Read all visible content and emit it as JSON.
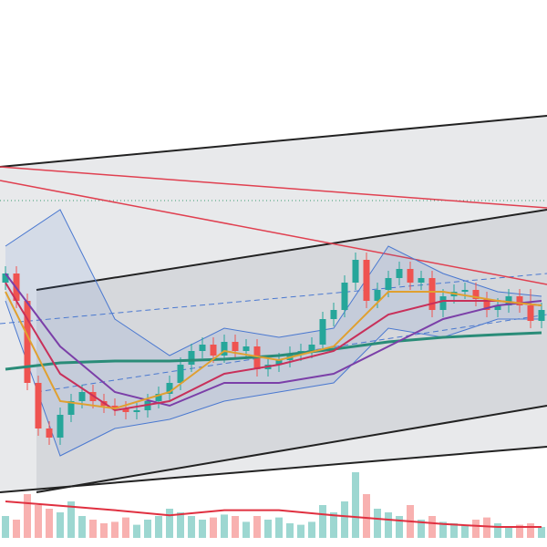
{
  "chart_data": {
    "type": "candlestick",
    "open": [
      29,
      30,
      27,
      18,
      13,
      12,
      14.5,
      16,
      17,
      16,
      15.5,
      15.2,
      14.8,
      15,
      16,
      16.8,
      18,
      20,
      21.5,
      22.2,
      21,
      22.5,
      21.5,
      22,
      19.5,
      20,
      20.5,
      21.2,
      21.5,
      22.2,
      25,
      26,
      29,
      31.5,
      27,
      28.2,
      29.5,
      30.5,
      29,
      29.5,
      26,
      27.5,
      28,
      28.2,
      27.2,
      26,
      26.5,
      27.5,
      26.5,
      24.8
    ],
    "high": [
      30.8,
      30.8,
      27.8,
      18.8,
      13.8,
      15.3,
      16.8,
      17.8,
      17.8,
      16.8,
      16.3,
      16,
      15.8,
      16.8,
      17.6,
      18.8,
      20.8,
      22.3,
      23,
      23,
      23.3,
      23.3,
      22.8,
      22.8,
      20.8,
      21.3,
      22,
      22.3,
      23,
      25.8,
      26.8,
      29.8,
      32.3,
      32.3,
      29,
      30.3,
      31.3,
      31.3,
      30.3,
      30.3,
      28.3,
      28.8,
      29,
      29,
      28,
      27.3,
      28.3,
      28.3,
      28.3,
      26.8
    ],
    "low": [
      28.2,
      26.2,
      17.2,
      12.2,
      11.2,
      11.2,
      13.7,
      15.2,
      15.2,
      14.7,
      14.4,
      14,
      14,
      14.2,
      15.2,
      16,
      17.2,
      19.2,
      20.7,
      20.2,
      20.2,
      20.7,
      20.7,
      18.7,
      18.7,
      19.2,
      19.7,
      20.4,
      20.7,
      21.4,
      24.2,
      25.2,
      28.2,
      26.2,
      26.2,
      27.4,
      28.7,
      28.2,
      28.2,
      25.2,
      25.2,
      26.7,
      27.2,
      26.4,
      25.2,
      25.2,
      25.7,
      25.7,
      24,
      24
    ],
    "close": [
      30,
      27,
      18,
      13,
      12,
      14.5,
      16,
      17,
      16,
      15.5,
      15.2,
      14.8,
      15,
      16,
      16.8,
      18,
      20,
      21.5,
      22.2,
      21,
      22.5,
      21.5,
      22,
      19.5,
      20,
      20.5,
      21.2,
      21.5,
      22.2,
      25,
      26,
      29,
      31.5,
      27,
      28.2,
      29.5,
      30.5,
      29,
      29.5,
      26,
      27.5,
      28,
      28.2,
      27.2,
      26,
      26.5,
      27.5,
      26.5,
      24.8,
      26
    ],
    "volume": [
      30,
      25,
      60,
      45,
      40,
      35,
      50,
      30,
      25,
      20,
      22,
      28,
      18,
      25,
      30,
      40,
      35,
      30,
      25,
      28,
      32,
      30,
      22,
      30,
      25,
      28,
      20,
      18,
      22,
      45,
      35,
      50,
      90,
      60,
      40,
      35,
      30,
      45,
      25,
      30,
      22,
      20,
      18,
      25,
      28,
      20,
      15,
      18,
      20,
      15
    ],
    "up_color": "#26a69a",
    "down_color": "#ef5350",
    "ylim": [
      0,
      60
    ],
    "volume_lim": [
      0,
      100
    ],
    "indicator_x": [
      0,
      5,
      10,
      15,
      20,
      25,
      30,
      35,
      40,
      45,
      49
    ],
    "bands": {
      "color": "#4a78d0",
      "upper": [
        33,
        37,
        25,
        21,
        24,
        23,
        24,
        33,
        30,
        28,
        27.5
      ],
      "lower": [
        27,
        10,
        13,
        14,
        16,
        17,
        18,
        24,
        23,
        25,
        25
      ]
    },
    "indicators": [
      {
        "color": "#2a8c78",
        "values": [
          19.5,
          20.2,
          20.4,
          20.4,
          20.6,
          21,
          21.7,
          22.5,
          23,
          23.3,
          23.5
        ]
      },
      {
        "color": "#7b3fa8",
        "values": [
          30,
          22,
          17,
          15.5,
          18,
          18,
          19,
          22,
          25,
          26.5,
          27
        ]
      },
      {
        "color": "#c8305a",
        "values": [
          29,
          19,
          15,
          16,
          19,
          20,
          21.5,
          25.5,
          27,
          27,
          26.5
        ]
      },
      {
        "color": "#e0a030",
        "values": [
          28,
          16,
          15.2,
          17,
          21.5,
          20.5,
          22,
          28,
          28,
          27,
          26.5
        ]
      }
    ],
    "volume_ma": {
      "color": "#e03040",
      "values": [
        50,
        44,
        38,
        31,
        38,
        38,
        31,
        25,
        19,
        15,
        15
      ]
    }
  }
}
